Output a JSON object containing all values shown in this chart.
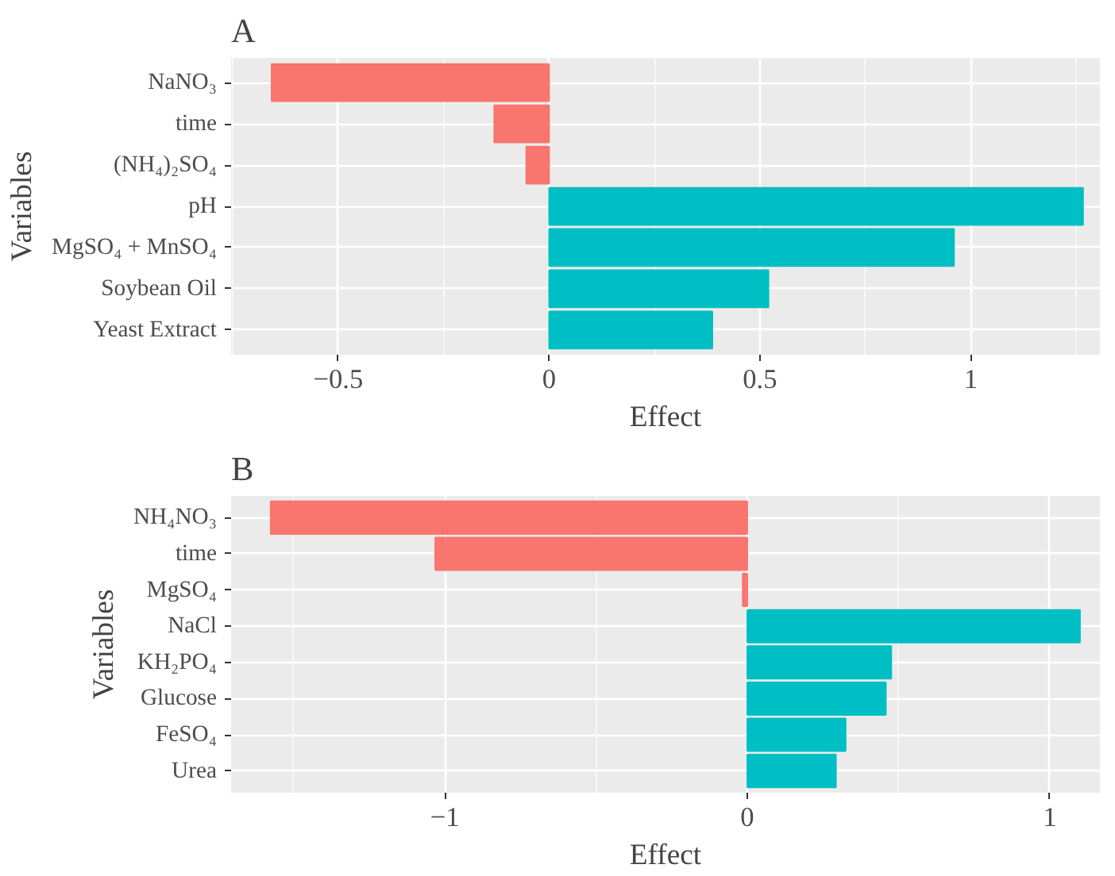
{
  "chart_data": [
    {
      "type": "bar",
      "orientation": "horizontal",
      "title": "A",
      "xlabel": "Effect",
      "ylabel": "Variables",
      "categories": [
        "NaNO₃",
        "time",
        "(NH₄)₂SO₄",
        "pH",
        "MgSO₄ + MnSO₄",
        "Soybean Oil",
        "Yeast Extract"
      ],
      "values": [
        -0.658,
        -0.13,
        -0.054,
        1.266,
        0.96,
        0.52,
        0.387
      ],
      "colors": [
        "#f8766d",
        "#f8766d",
        "#f8766d",
        "#00bfc4",
        "#00bfc4",
        "#00bfc4",
        "#00bfc4"
      ],
      "xlim": [
        -0.754,
        1.306
      ],
      "xticks": [
        {
          "value": -0.5,
          "label": "−0.5"
        },
        0,
        0.5,
        1
      ],
      "grid": true
    },
    {
      "type": "bar",
      "orientation": "horizontal",
      "title": "B",
      "xlabel": "Effect",
      "ylabel": "Variables",
      "categories": [
        "NH₄NO₃",
        "time",
        "MgSO₄",
        "NaCl",
        "KH₂PO₄",
        "Glucose",
        "FeSO₄",
        "Urea"
      ],
      "values": [
        -1.576,
        -1.032,
        -0.015,
        1.1,
        0.476,
        0.458,
        0.325,
        0.293
      ],
      "colors": [
        "#f8766d",
        "#f8766d",
        "#f8766d",
        "#00bfc4",
        "#00bfc4",
        "#00bfc4",
        "#00bfc4",
        "#00bfc4"
      ],
      "xlim": [
        -1.707,
        1.166
      ],
      "xticks": [
        {
          "value": -1,
          "label": "−1"
        },
        0,
        1
      ],
      "grid": true
    }
  ]
}
